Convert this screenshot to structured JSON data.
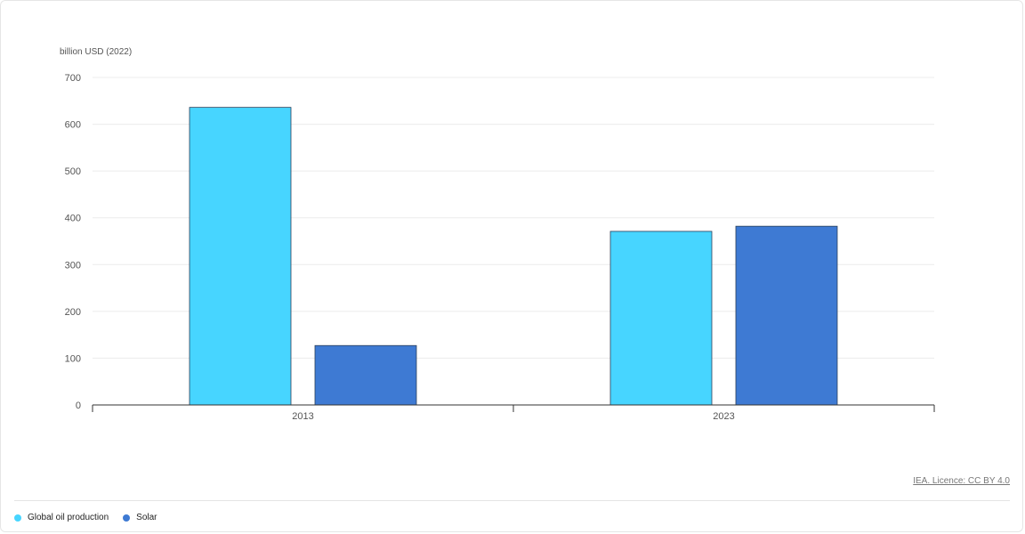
{
  "source": {
    "credit_text": "IEA. Licence: CC BY 4.0"
  },
  "chart_data": {
    "type": "bar",
    "ylabel": "billion USD (2022)",
    "categories": [
      "2013",
      "2023"
    ],
    "series": [
      {
        "name": "Global oil production",
        "color": "#47d5ff",
        "values": [
          636,
          371
        ]
      },
      {
        "name": "Solar",
        "color": "#3e7ad3",
        "values": [
          127,
          382
        ]
      }
    ],
    "ylim": [
      0,
      700
    ],
    "yticks": [
      0,
      100,
      200,
      300,
      400,
      500,
      600,
      700
    ],
    "grid": true,
    "legend_position": "bottom-left"
  }
}
